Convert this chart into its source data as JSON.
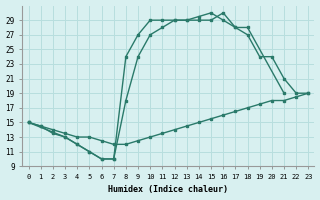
{
  "xlabel": "Humidex (Indice chaleur)",
  "bg_color": "#d8f0f0",
  "line_color": "#2a7a6a",
  "grid_color": "#b8dede",
  "xlim": [
    -0.5,
    23.5
  ],
  "ylim": [
    9,
    31
  ],
  "xticks": [
    0,
    1,
    2,
    3,
    4,
    5,
    6,
    7,
    8,
    9,
    10,
    11,
    12,
    13,
    14,
    15,
    16,
    17,
    18,
    19,
    20,
    21,
    22,
    23
  ],
  "yticks": [
    9,
    11,
    13,
    15,
    17,
    19,
    21,
    23,
    25,
    27,
    29
  ],
  "line1_x": [
    0,
    1,
    2,
    3,
    4,
    5,
    6,
    7,
    8,
    9,
    10,
    11,
    12,
    13,
    14,
    15,
    16,
    17,
    18,
    21
  ],
  "line1_y": [
    15,
    14.5,
    13.5,
    13,
    12,
    11,
    10,
    10,
    24,
    27,
    29,
    29,
    29,
    29,
    29,
    29,
    30,
    28,
    28,
    19
  ],
  "line2_x": [
    0,
    3,
    4,
    5,
    6,
    7,
    8,
    9,
    10,
    11,
    12,
    13,
    14,
    15,
    16,
    17,
    18,
    19,
    20,
    21,
    22,
    23
  ],
  "line2_y": [
    15,
    13,
    12,
    11,
    10,
    10,
    18,
    24,
    27,
    28,
    29,
    29,
    29.5,
    30,
    29,
    28,
    27,
    24,
    24,
    21,
    19,
    19
  ],
  "line3_x": [
    0,
    1,
    2,
    3,
    4,
    5,
    6,
    7,
    8,
    9,
    10,
    11,
    12,
    13,
    14,
    15,
    16,
    17,
    18,
    19,
    20,
    21,
    22,
    23
  ],
  "line3_y": [
    15,
    14.5,
    14,
    13.5,
    13,
    13,
    12.5,
    12,
    12,
    12.5,
    13,
    13.5,
    14,
    14.5,
    15,
    15.5,
    16,
    16.5,
    17,
    17.5,
    18,
    18,
    18.5,
    19
  ]
}
